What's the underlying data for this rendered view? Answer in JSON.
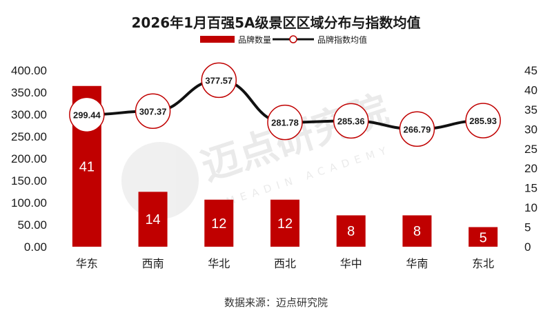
{
  "chart_data": {
    "type": "bar",
    "title": "2026年1月百强5A级景区区域分布与指数均值",
    "categories": [
      "华东",
      "西南",
      "华北",
      "西北",
      "华中",
      "华南",
      "东北"
    ],
    "series": [
      {
        "name": "品牌数量",
        "type": "bar",
        "axis": "right",
        "values": [
          41,
          14,
          12,
          12,
          8,
          8,
          5
        ]
      },
      {
        "name": "品牌指数均值",
        "type": "line",
        "axis": "left",
        "values": [
          299.44,
          307.37,
          377.57,
          281.78,
          285.36,
          266.79,
          285.93
        ]
      }
    ],
    "y_left": {
      "min": 0,
      "max": 400,
      "step": 50,
      "ticks": [
        "0.00",
        "50.00",
        "100.00",
        "150.00",
        "200.00",
        "250.00",
        "300.00",
        "350.00",
        "400.00"
      ]
    },
    "y_right": {
      "min": 0,
      "max": 45,
      "step": 5,
      "ticks": [
        "0",
        "5",
        "10",
        "15",
        "20",
        "25",
        "30",
        "35",
        "40",
        "45"
      ]
    },
    "legend_position": "top",
    "grid": false,
    "colors": {
      "bar": "#c00000",
      "line": "#111111",
      "marker_edge": "#c00000",
      "marker_fill": "#ffffff"
    },
    "source": "数据来源：迈点研究院",
    "watermark": {
      "text": "迈点研究院",
      "subtext": "MEADIN ACADEMY"
    }
  }
}
